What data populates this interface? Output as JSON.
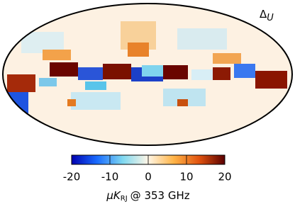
{
  "chart_data": {
    "type": "sky-map",
    "projection": "mollweide",
    "title": "Δ",
    "title_sub": "U",
    "colorbar": {
      "clim": [
        -20,
        20
      ],
      "ticks": [
        -20,
        -10,
        0,
        10,
        20
      ],
      "colors": [
        "#0000b0",
        "#1a6cff",
        "#7fd8f0",
        "#fff6e6",
        "#ffb447",
        "#e0520f",
        "#5a0000"
      ],
      "label": "μK",
      "label_sub": "RJ",
      "label_rest": "@ 353 GHz"
    }
  }
}
